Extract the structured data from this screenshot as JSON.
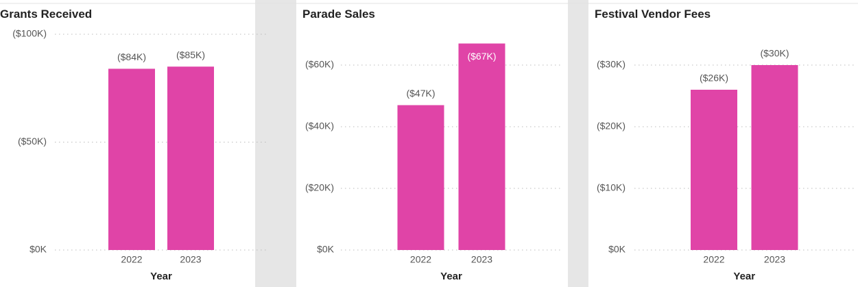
{
  "chart_data": [
    {
      "type": "bar",
      "title": "Grants Received",
      "x_label": "Year",
      "categories": [
        "2022",
        "2023"
      ],
      "values": [
        84000,
        85000
      ],
      "value_labels": [
        "($84K)",
        "($85K)"
      ],
      "color": "#e044a7",
      "ylim": [
        0,
        100000
      ],
      "yticks": [
        {
          "value": 0,
          "label": "$0K"
        },
        {
          "value": 50000,
          "label": "($50K)"
        },
        {
          "value": 100000,
          "label": "($100K)"
        }
      ],
      "grid": true
    },
    {
      "type": "bar",
      "title": "Parade Sales",
      "x_label": "Year",
      "categories": [
        "2022",
        "2023"
      ],
      "values": [
        47000,
        67000
      ],
      "value_labels": [
        "($47K)",
        "($67K)"
      ],
      "color": "#e044a7",
      "ylim": [
        0,
        70000
      ],
      "yticks": [
        {
          "value": 0,
          "label": "$0K"
        },
        {
          "value": 20000,
          "label": "($20K)"
        },
        {
          "value": 40000,
          "label": "($40K)"
        },
        {
          "value": 60000,
          "label": "($60K)"
        }
      ],
      "grid": true
    },
    {
      "type": "bar",
      "title": "Festival Vendor Fees",
      "x_label": "Year",
      "categories": [
        "2022",
        "2023"
      ],
      "values": [
        26000,
        30000
      ],
      "value_labels": [
        "($26K)",
        "($30K)"
      ],
      "color": "#e044a7",
      "ylim": [
        0,
        35000
      ],
      "yticks": [
        {
          "value": 0,
          "label": "$0K"
        },
        {
          "value": 10000,
          "label": "($10K)"
        },
        {
          "value": 20000,
          "label": "($20K)"
        },
        {
          "value": 30000,
          "label": "($30K)"
        }
      ],
      "grid": true
    }
  ]
}
